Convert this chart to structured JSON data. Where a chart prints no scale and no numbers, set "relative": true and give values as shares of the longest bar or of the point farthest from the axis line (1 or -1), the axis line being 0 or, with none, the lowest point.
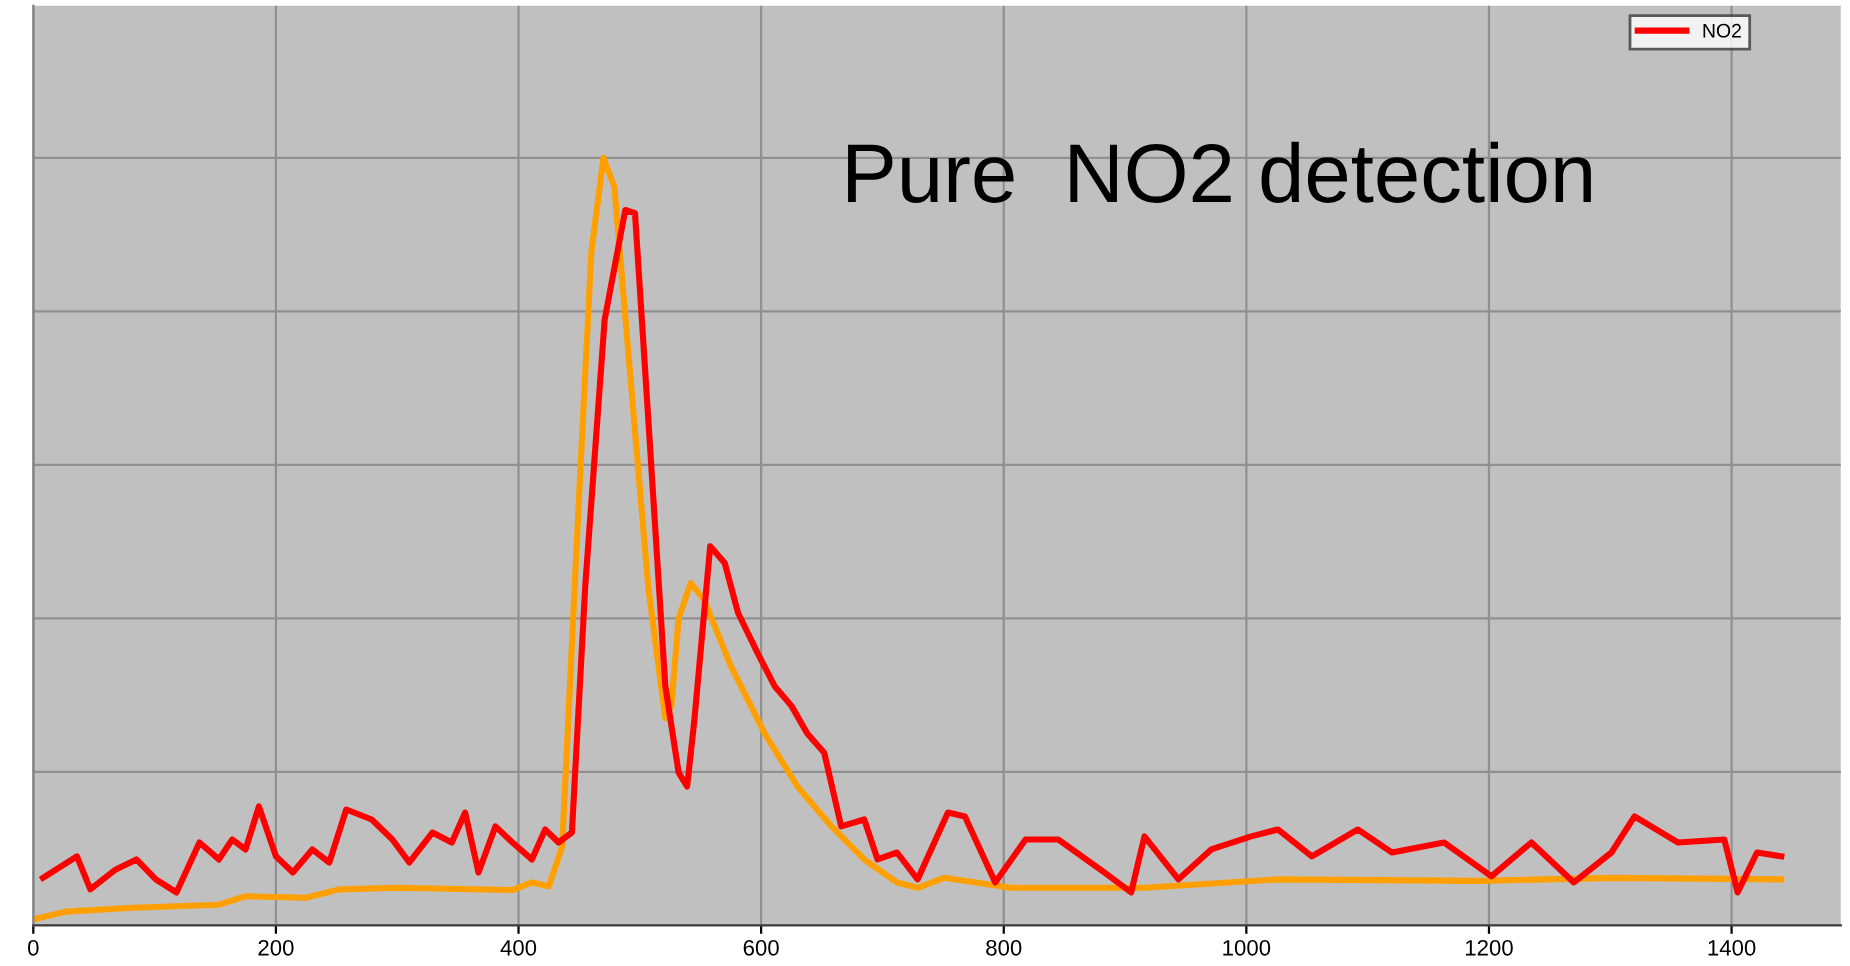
{
  "chart_data": {
    "type": "line",
    "relative": true,
    "tick_labels": "x",
    "grid": true,
    "legend": "top right",
    "xlim": [
      0,
      1490
    ],
    "xticks": [
      0,
      200,
      400,
      600,
      800,
      1000,
      1200,
      1400
    ],
    "annotations": [
      "Pure  NO2 detection"
    ],
    "series": [
      {
        "color": "#ffa000",
        "x": [
          0,
          27,
          82,
          153,
          175,
          225,
          252,
          301,
          395,
          411,
          425,
          436,
          449,
          460,
          470,
          479,
          493,
          507,
          521,
          526,
          532,
          542,
          553,
          575,
          603,
          630,
          658,
          685,
          712,
          729,
          751,
          806,
          916,
          1026,
          1191,
          1301,
          1441
        ],
        "values": [
          0.008,
          0.018,
          0.023,
          0.027,
          0.038,
          0.036,
          0.047,
          0.049,
          0.046,
          0.056,
          0.051,
          0.103,
          0.53,
          0.876,
          1.0,
          0.962,
          0.7,
          0.44,
          0.27,
          0.286,
          0.4,
          0.446,
          0.424,
          0.338,
          0.25,
          0.181,
          0.129,
          0.086,
          0.056,
          0.049,
          0.062,
          0.049,
          0.049,
          0.06,
          0.058,
          0.062,
          0.06
        ]
      },
      {
        "name": "NO2",
        "color": "#ff0000",
        "x": [
          8,
          36,
          47,
          68,
          85,
          101,
          118,
          137,
          153,
          164,
          175,
          186,
          200,
          214,
          230,
          244,
          258,
          279,
          296,
          310,
          329,
          345,
          356,
          367,
          381,
          395,
          411,
          422,
          433,
          444,
          455,
          471,
          488,
          496,
          507,
          521,
          532,
          539,
          545,
          558,
          570,
          581,
          597,
          611,
          625,
          638,
          652,
          666,
          685,
          696,
          712,
          729,
          754,
          768,
          793,
          818,
          845,
          883,
          905,
          916,
          944,
          971,
          1004,
          1026,
          1054,
          1092,
          1120,
          1163,
          1202,
          1235,
          1270,
          1301,
          1320,
          1356,
          1394,
          1405,
          1421,
          1441
        ],
        "values": [
          0.062,
          0.09,
          0.047,
          0.073,
          0.086,
          0.06,
          0.043,
          0.108,
          0.086,
          0.112,
          0.099,
          0.155,
          0.09,
          0.069,
          0.099,
          0.082,
          0.151,
          0.138,
          0.112,
          0.082,
          0.121,
          0.108,
          0.147,
          0.069,
          0.129,
          0.108,
          0.086,
          0.125,
          0.108,
          0.121,
          0.442,
          0.789,
          0.932,
          0.928,
          0.659,
          0.312,
          0.199,
          0.181,
          0.268,
          0.494,
          0.472,
          0.407,
          0.355,
          0.312,
          0.286,
          0.25,
          0.225,
          0.129,
          0.138,
          0.086,
          0.095,
          0.06,
          0.147,
          0.142,
          0.056,
          0.112,
          0.112,
          0.069,
          0.043,
          0.116,
          0.06,
          0.099,
          0.116,
          0.125,
          0.09,
          0.125,
          0.095,
          0.108,
          0.064,
          0.108,
          0.056,
          0.095,
          0.142,
          0.108,
          0.112,
          0.043,
          0.095,
          0.09
        ]
      }
    ]
  }
}
